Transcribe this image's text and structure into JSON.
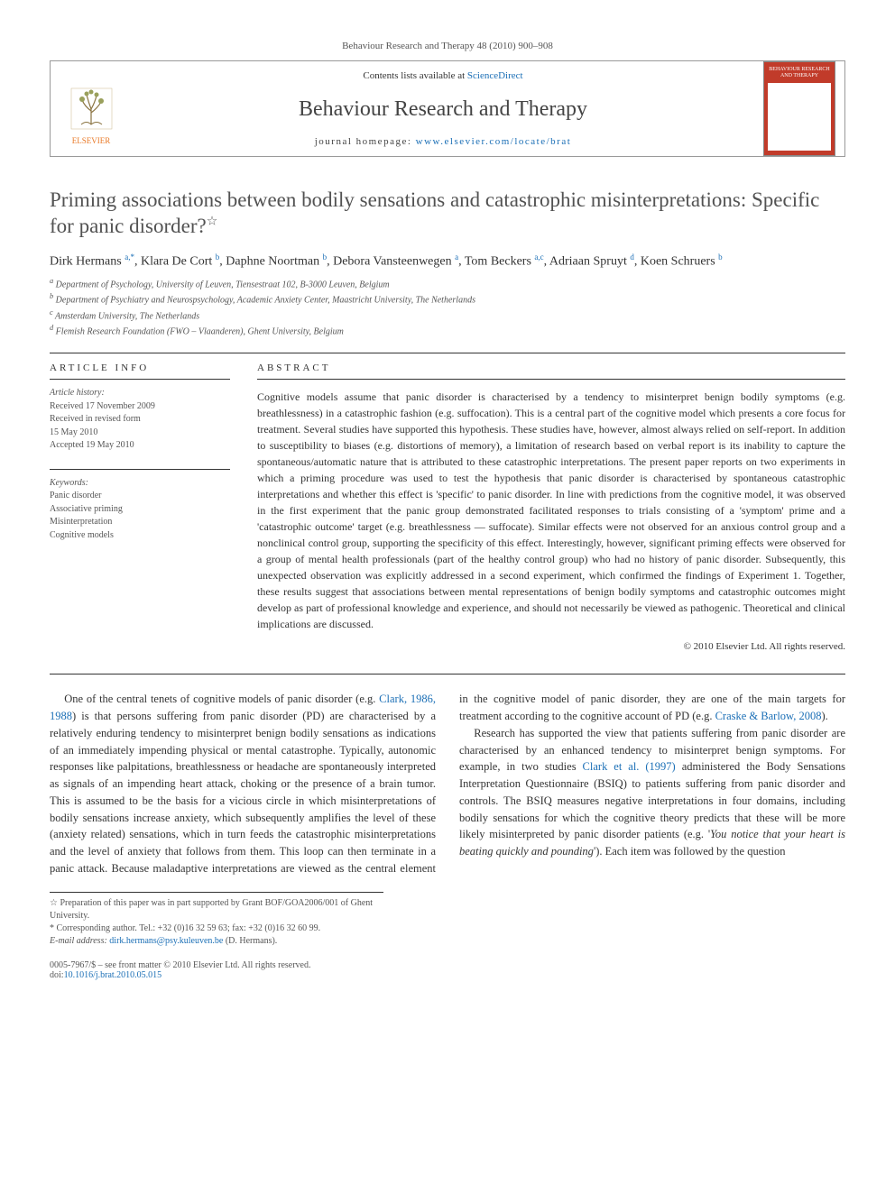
{
  "journal_ref": "Behaviour Research and Therapy 48 (2010) 900–908",
  "header": {
    "contents_text": "Contents lists available at ",
    "contents_link": "ScienceDirect",
    "journal_name": "Behaviour Research and Therapy",
    "homepage_label": "journal homepage: ",
    "homepage_url": "www.elsevier.com/locate/brat",
    "publisher": "ELSEVIER",
    "cover_title": "BEHAVIOUR RESEARCH AND THERAPY",
    "logo_color": "#e97826",
    "cover_bg": "#c13b2a"
  },
  "article": {
    "title": "Priming associations between bodily sensations and catastrophic misinterpretations: Specific for panic disorder?",
    "star_symbol": "☆",
    "authors_html": "Dirk Hermans <sup>a,*</sup>, Klara De Cort <sup>b</sup>, Daphne Noortman <sup>b</sup>, Debora Vansteenwegen <sup>a</sup>, Tom Beckers <sup>a,c</sup>, Adriaan Spruyt <sup>d</sup>, Koen Schruers <sup>b</sup>",
    "affiliations": [
      "a Department of Psychology, University of Leuven, Tiensestraat 102, B-3000 Leuven, Belgium",
      "b Department of Psychiatry and Neurospsychology, Academic Anxiety Center, Maastricht University, The Netherlands",
      "c Amsterdam University, The Netherlands",
      "d Flemish Research Foundation (FWO – Vlaanderen), Ghent University, Belgium"
    ]
  },
  "article_info": {
    "heading": "ARTICLE INFO",
    "history_heading": "Article history:",
    "history_lines": [
      "Received 17 November 2009",
      "Received in revised form",
      "15 May 2010",
      "Accepted 19 May 2010"
    ],
    "keywords_heading": "Keywords:",
    "keywords": [
      "Panic disorder",
      "Associative priming",
      "Misinterpretation",
      "Cognitive models"
    ]
  },
  "abstract": {
    "heading": "ABSTRACT",
    "text": "Cognitive models assume that panic disorder is characterised by a tendency to misinterpret benign bodily symptoms (e.g. breathlessness) in a catastrophic fashion (e.g. suffocation). This is a central part of the cognitive model which presents a core focus for treatment. Several studies have supported this hypothesis. These studies have, however, almost always relied on self-report. In addition to susceptibility to biases (e.g. distortions of memory), a limitation of research based on verbal report is its inability to capture the spontaneous/automatic nature that is attributed to these catastrophic interpretations. The present paper reports on two experiments in which a priming procedure was used to test the hypothesis that panic disorder is characterised by spontaneous catastrophic interpretations and whether this effect is 'specific' to panic disorder. In line with predictions from the cognitive model, it was observed in the first experiment that the panic group demonstrated facilitated responses to trials consisting of a 'symptom' prime and a 'catastrophic outcome' target (e.g. breathlessness — suffocate). Similar effects were not observed for an anxious control group and a nonclinical control group, supporting the specificity of this effect. Interestingly, however, significant priming effects were observed for a group of mental health professionals (part of the healthy control group) who had no history of panic disorder. Subsequently, this unexpected observation was explicitly addressed in a second experiment, which confirmed the findings of Experiment 1. Together, these results suggest that associations between mental representations of benign bodily symptoms and catastrophic outcomes might develop as part of professional knowledge and experience, and should not necessarily be viewed as pathogenic. Theoretical and clinical implications are discussed.",
    "copyright": "© 2010 Elsevier Ltd. All rights reserved."
  },
  "body": {
    "p1a": "One of the central tenets of cognitive models of panic disorder (e.g. ",
    "p1_link1": "Clark, 1986, 1988",
    "p1b": ") is that persons suffering from panic disorder (PD) are characterised by a relatively enduring tendency to misinterpret benign bodily sensations as indications of an immediately impending physical or mental catastrophe. Typically, autonomic responses like palpitations, breathlessness or headache are spontaneously interpreted as signals of an impending heart attack, choking or the presence of a brain tumor. This is assumed to be the basis for a vicious circle in which misinterpretations of bodily sensations increase anxiety, which subsequently amplifies the level of these (anxiety related) sensations, which in turn feeds the catastrophic misinterpretations and the level of anxiety that follows from them. This loop can then terminate in a panic attack. Because maladaptive interpretations are viewed as the central element in the cognitive model of panic disorder, they are one of the main targets for treatment according to the cognitive account of PD (e.g. ",
    "p1_link2": "Craske & Barlow, 2008",
    "p1c": ").",
    "p2a": "Research has supported the view that patients suffering from panic disorder are characterised by an enhanced tendency to misinterpret benign symptoms. For example, in two studies ",
    "p2_link1": "Clark et al. (1997)",
    "p2b": " administered the Body Sensations Interpretation Questionnaire (BSIQ) to patients suffering from panic disorder and controls. The BSIQ measures negative interpretations in four domains, including bodily sensations for which the cognitive theory predicts that these will be more likely misinterpreted by panic disorder patients (e.g. '",
    "p2_ital": "You notice that your heart is beating quickly and pounding",
    "p2c": "'). Each item was followed by the question"
  },
  "footnotes": {
    "star": "☆ Preparation of this paper was in part supported by Grant BOF/GOA2006/001 of Ghent University.",
    "corr_label": "* Corresponding author. Tel.: +32 (0)16 32 59 63; fax: +32 (0)16 32 60 99.",
    "email_label": "E-mail address: ",
    "email": "dirk.hermans@psy.kuleuven.be",
    "email_tail": " (D. Hermans)."
  },
  "footer": {
    "left1": "0005-7967/$ – see front matter © 2010 Elsevier Ltd. All rights reserved.",
    "left2_label": "doi:",
    "left2_link": "10.1016/j.brat.2010.05.015"
  }
}
